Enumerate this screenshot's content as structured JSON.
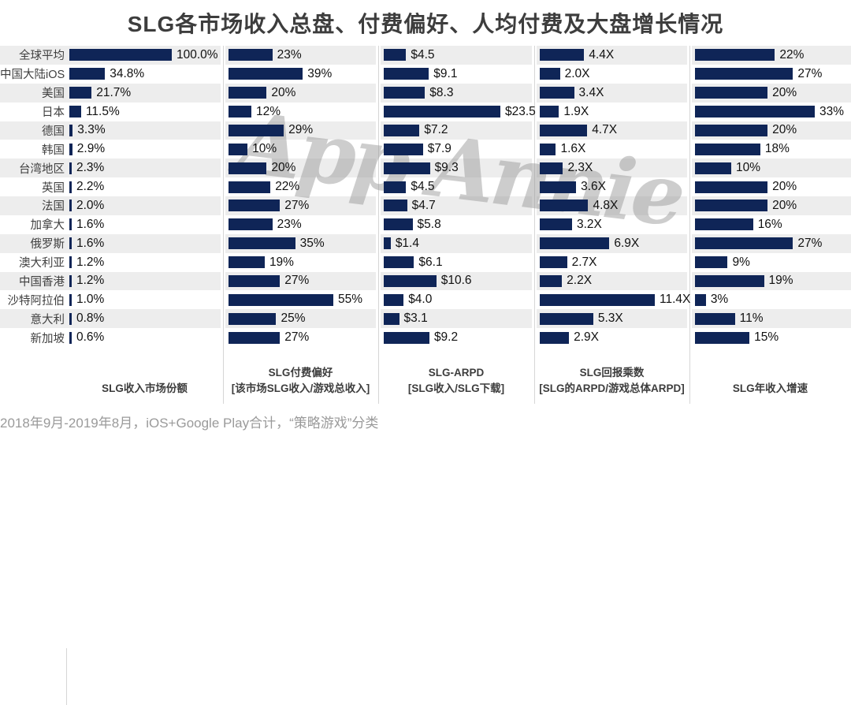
{
  "title": "SLG各市场收入总盘、付费偏好、人均付费及大盘增长情况",
  "watermark": "App Annie",
  "footnote": "2018年9月-2019年8月，iOS+Google Play合计，“策略游戏”分类",
  "colors": {
    "bar": "#0f2557",
    "row_stripe": "#ededed",
    "title_text": "#3d3d3d",
    "value_text": "#111111",
    "label_text": "#3f3f3f",
    "divider": "#d6d6d6",
    "footnote_text": "#9a9a9a",
    "watermark": "#969696"
  },
  "chart_data": {
    "type": "bar",
    "orientation": "horizontal",
    "title": "SLG各市场收入总盘、付费偏好、人均付费及大盘增长情况",
    "legend": "none",
    "grid": "off",
    "row_striping": true,
    "categories": [
      "全球平均",
      "中国大陆iOS",
      "美国",
      "日本",
      "德国",
      "韩国",
      "台湾地区",
      "英国",
      "法国",
      "加拿大",
      "俄罗斯",
      "澳大利亚",
      "中国香港",
      "沙特阿拉伯",
      "意大利",
      "新加坡"
    ],
    "series": [
      {
        "name": "SLG收入市场份额",
        "formula": "",
        "unit": "%",
        "axis_max": 100,
        "values": [
          100.0,
          34.8,
          21.7,
          11.5,
          3.3,
          2.9,
          2.3,
          2.2,
          2.0,
          1.6,
          1.6,
          1.2,
          1.2,
          1.0,
          0.8,
          0.6
        ],
        "labels": [
          "100.0%",
          "34.8%",
          "21.7%",
          "11.5%",
          "3.3%",
          "2.9%",
          "2.3%",
          "2.2%",
          "2.0%",
          "1.6%",
          "1.6%",
          "1.2%",
          "1.2%",
          "1.0%",
          "0.8%",
          "0.6%"
        ]
      },
      {
        "name": "SLG付费偏好",
        "formula": "[该市场SLG收入/游戏总收入]",
        "unit": "%",
        "axis_max": 55,
        "values": [
          23,
          39,
          20,
          12,
          29,
          10,
          20,
          22,
          27,
          23,
          35,
          19,
          27,
          55,
          25,
          27
        ],
        "labels": [
          "23%",
          "39%",
          "20%",
          "12%",
          "29%",
          "10%",
          "20%",
          "22%",
          "27%",
          "23%",
          "35%",
          "19%",
          "27%",
          "55%",
          "25%",
          "27%"
        ]
      },
      {
        "name": "SLG-ARPD",
        "formula": "[SLG收入/SLG下载]",
        "unit": "$",
        "axis_max": 23.5,
        "values": [
          4.5,
          9.1,
          8.3,
          23.5,
          7.2,
          7.9,
          9.3,
          4.5,
          4.7,
          5.8,
          1.4,
          6.1,
          10.6,
          4.0,
          3.1,
          9.2
        ],
        "labels": [
          "$4.5",
          "$9.1",
          "$8.3",
          "$23.5",
          "$7.2",
          "$7.9",
          "$9.3",
          "$4.5",
          "$4.7",
          "$5.8",
          "$1.4",
          "$6.1",
          "$10.6",
          "$4.0",
          "$3.1",
          "$9.2"
        ]
      },
      {
        "name": "SLG回报乘数",
        "formula": "[SLG的ARPD/游戏总体ARPD]",
        "unit": "X",
        "axis_max": 11.4,
        "values": [
          4.4,
          2.0,
          3.4,
          1.9,
          4.7,
          1.6,
          2.3,
          3.6,
          4.8,
          3.2,
          6.9,
          2.7,
          2.2,
          11.4,
          5.3,
          2.9
        ],
        "labels": [
          "4.4X",
          "2.0X",
          "3.4X",
          "1.9X",
          "4.7X",
          "1.6X",
          "2.3X",
          "3.6X",
          "4.8X",
          "3.2X",
          "6.9X",
          "2.7X",
          "2.2X",
          "11.4X",
          "5.3X",
          "2.9X"
        ]
      },
      {
        "name": "SLG年收入增速",
        "formula": "",
        "unit": "%",
        "axis_max": 33,
        "values": [
          22,
          27,
          20,
          33,
          20,
          18,
          10,
          20,
          20,
          16,
          27,
          9,
          19,
          3,
          11,
          15
        ],
        "labels": [
          "22%",
          "27%",
          "20%",
          "33%",
          "20%",
          "18%",
          "10%",
          "20%",
          "20%",
          "16%",
          "27%",
          "9%",
          "19%",
          "3%",
          "11%",
          "15%"
        ]
      }
    ]
  }
}
